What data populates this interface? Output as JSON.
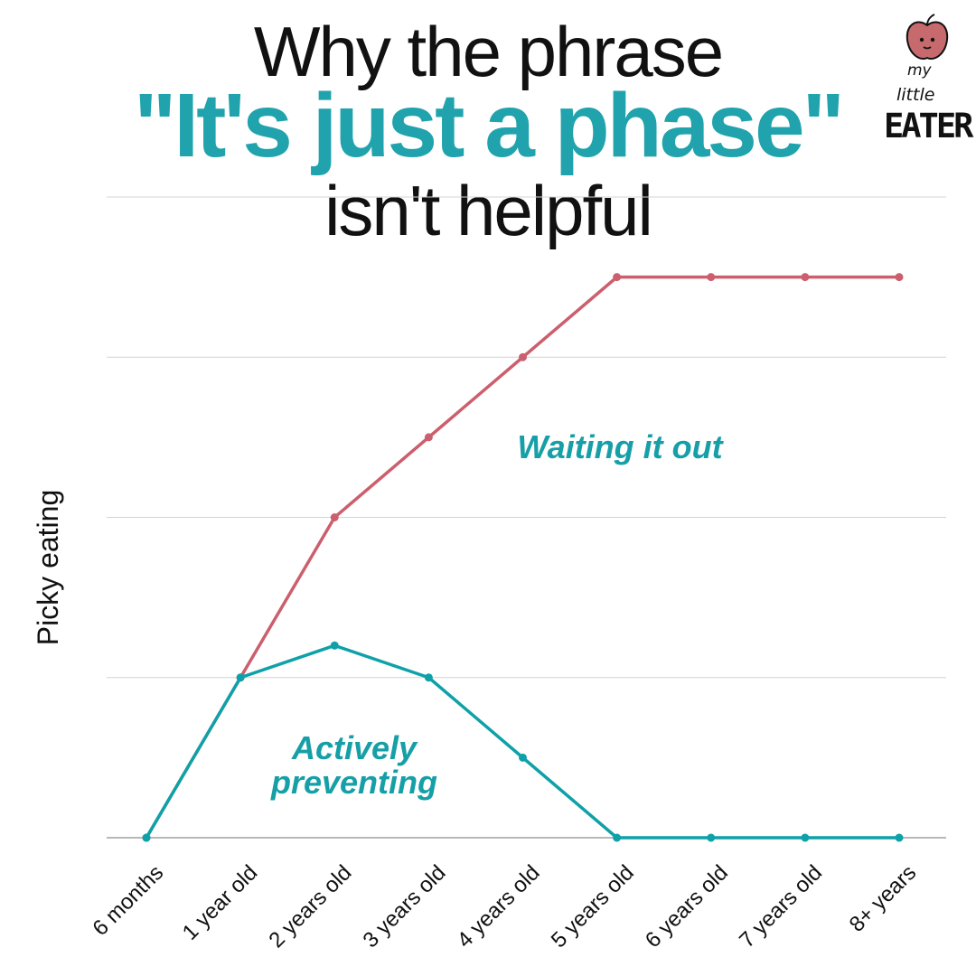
{
  "title": {
    "line1": "Why the phrase",
    "line2": "\"It's just a phase\"",
    "line3": "isn't helpful"
  },
  "logo": {
    "word1": "my",
    "word2": "little",
    "word3": "EATER",
    "icon": "apple-face-icon",
    "icon_color": "#c76a6e"
  },
  "chart_data": {
    "type": "line",
    "title": "Why the phrase \"It's just a phase\" isn't helpful",
    "ylabel": "Picky eating",
    "xlabel": "",
    "categories": [
      "6 months",
      "1 year old",
      "2 years old",
      "3 years old",
      "4 years old",
      "5 years old",
      "6 years old",
      "7 years old",
      "8+ years"
    ],
    "ylim": [
      0,
      4
    ],
    "grid": true,
    "series": [
      {
        "name": "Waiting it out",
        "color": "#cc5f6d",
        "values": [
          0,
          1,
          2,
          2.5,
          3,
          3.5,
          3.5,
          3.5,
          3.5
        ]
      },
      {
        "name": "Actively preventing",
        "color": "#0ea1a8",
        "values": [
          0,
          1,
          1.2,
          1,
          0.5,
          0,
          0,
          0,
          0
        ]
      }
    ],
    "annotations": {
      "waiting_label": "Waiting it out",
      "actively_label_line1": "Actively",
      "actively_label_line2": "preventing"
    }
  }
}
